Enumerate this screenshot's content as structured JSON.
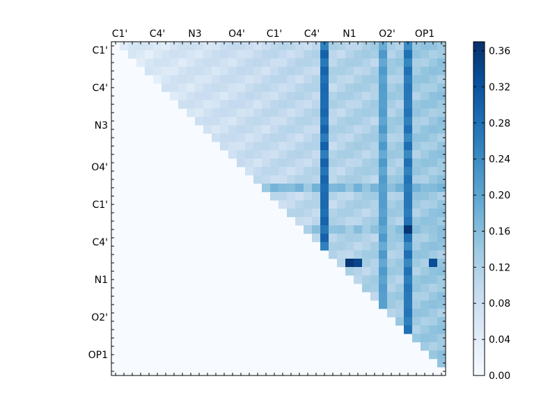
{
  "chart_data": {
    "type": "heatmap",
    "title": "",
    "xlabel": "",
    "ylabel": "",
    "matrix_size": 40,
    "x_tick_labels": [
      "C1'",
      "C4'",
      "N3",
      "O4'",
      "C1'",
      "C4'",
      "N1",
      "O2'",
      "OP1"
    ],
    "y_tick_labels": [
      "C1'",
      "C4'",
      "N3",
      "O4'",
      "C1'",
      "C4'",
      "N1",
      "O2'",
      "OP1"
    ],
    "tick_label_positions": [
      0.5,
      5,
      9.5,
      14.5,
      19,
      23.5,
      28,
      32.5,
      37
    ],
    "colorbar": {
      "min": 0.0,
      "max": 0.37,
      "ticks": [
        0.0,
        0.04,
        0.08,
        0.12,
        0.16,
        0.2,
        0.24,
        0.28,
        0.32,
        0.36
      ],
      "tick_labels": [
        "0.00",
        "0.04",
        "0.08",
        "0.12",
        "0.16",
        "0.20",
        "0.24",
        "0.28",
        "0.32",
        "0.36"
      ],
      "colormap": "Blues"
    },
    "highlight_columns": [
      {
        "col": 25,
        "value": 0.3
      },
      {
        "col": 32,
        "value": 0.22
      },
      {
        "col": 35,
        "value": 0.28
      }
    ],
    "highlight_rows": [
      {
        "row": 17,
        "value": 0.18
      },
      {
        "row": 22,
        "value": 0.16
      }
    ],
    "peak_cells": [
      {
        "row": 26,
        "col": 28,
        "value": 0.36
      },
      {
        "row": 26,
        "col": 29,
        "value": 0.34
      },
      {
        "row": 22,
        "col": 35,
        "value": 0.36
      },
      {
        "row": 26,
        "col": 38,
        "value": 0.33
      }
    ]
  }
}
